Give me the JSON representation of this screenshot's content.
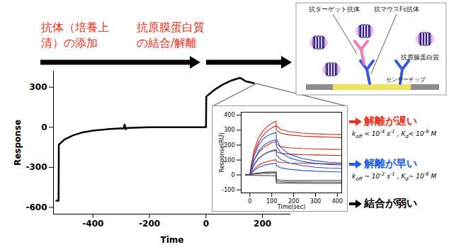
{
  "chart_data": [
    {
      "type": "line",
      "x_label": "Time",
      "y_label": "Response",
      "xlim": [
        -540,
        300
      ],
      "xticks": [
        -400,
        -200,
        0,
        200
      ],
      "ylim": [
        -650,
        420
      ],
      "yticks": [
        -600,
        -300,
        0,
        300
      ],
      "x": [
        -530,
        -522,
        -521,
        -500,
        -470,
        -440,
        -400,
        -350,
        -300,
        -292,
        -288,
        -284,
        -280,
        -200,
        -100,
        -10,
        0,
        1,
        30,
        60,
        90,
        120,
        125,
        140,
        170
      ],
      "series": [
        {
          "color": "#000000",
          "values": [
            -550,
            -550,
            -130,
            -90,
            -60,
            -40,
            -25,
            -15,
            -8,
            -10,
            20,
            -15,
            -5,
            0,
            0,
            0,
            0,
            230,
            280,
            320,
            350,
            370,
            365,
            345,
            330
          ]
        }
      ]
    },
    {
      "type": "line",
      "x_label": "Time(sec)",
      "y_label": "Response(RU)",
      "xlim": [
        -40,
        420
      ],
      "xticks": [
        0,
        100,
        200,
        300,
        400
      ],
      "ylim": [
        -120,
        420
      ],
      "yticks": [
        -100,
        0,
        100,
        200,
        300,
        400
      ],
      "x": [
        -20,
        0,
        5,
        20,
        40,
        60,
        80,
        100,
        120,
        121,
        140,
        180,
        240,
        300,
        360,
        420
      ],
      "series": [
        {
          "color": "#d7301f",
          "values": [
            0,
            0,
            60,
            170,
            250,
            295,
            325,
            345,
            360,
            330,
            305,
            290,
            280,
            275,
            272,
            270
          ]
        },
        {
          "color": "#c0281c",
          "values": [
            0,
            0,
            50,
            150,
            220,
            265,
            295,
            315,
            330,
            300,
            280,
            268,
            260,
            256,
            253,
            250
          ]
        },
        {
          "color": "#d7301f",
          "values": [
            0,
            0,
            30,
            100,
            150,
            180,
            200,
            215,
            225,
            205,
            190,
            182,
            177,
            174,
            172,
            170
          ]
        },
        {
          "color": "#b02418",
          "values": [
            0,
            0,
            20,
            70,
            110,
            135,
            150,
            162,
            170,
            155,
            145,
            140,
            136,
            134,
            132,
            130
          ]
        },
        {
          "color": "#d7301f",
          "values": [
            0,
            0,
            10,
            40,
            65,
            80,
            90,
            97,
            102,
            90,
            84,
            80,
            78,
            76,
            75,
            74
          ]
        },
        {
          "color": "#2a55d0",
          "values": [
            0,
            0,
            40,
            130,
            200,
            240,
            262,
            275,
            285,
            240,
            185,
            140,
            110,
            95,
            85,
            80
          ]
        },
        {
          "color": "#2a55d0",
          "values": [
            0,
            0,
            30,
            100,
            160,
            195,
            215,
            228,
            235,
            195,
            150,
            115,
            90,
            77,
            70,
            66
          ]
        },
        {
          "color": "#2a55d0",
          "values": [
            0,
            0,
            20,
            70,
            110,
            135,
            150,
            160,
            165,
            135,
            105,
            80,
            62,
            52,
            46,
            43
          ]
        },
        {
          "color": "#2a55d0",
          "values": [
            0,
            0,
            10,
            30,
            50,
            62,
            70,
            75,
            78,
            62,
            48,
            38,
            30,
            25,
            22,
            20
          ]
        },
        {
          "color": "#333333",
          "values": [
            0,
            0,
            5,
            10,
            14,
            17,
            19,
            20,
            21,
            -30,
            -35,
            -37,
            -37,
            -37,
            -37,
            -37
          ]
        },
        {
          "color": "#555555",
          "values": [
            0,
            0,
            3,
            6,
            8,
            10,
            11,
            12,
            13,
            -40,
            -45,
            -47,
            -47,
            -48,
            -48,
            -48
          ]
        },
        {
          "color": "#333333",
          "values": [
            0,
            0,
            -2,
            -3,
            -3,
            -4,
            -4,
            -5,
            -5,
            -55,
            -55,
            -55,
            -56,
            -56,
            -56,
            -56
          ]
        }
      ]
    }
  ],
  "annotations": {
    "steps": [
      {
        "lines": [
          "抗体（培養上",
          "清）の添加"
        ],
        "color": "#e8321e"
      },
      {
        "lines": [
          "抗原膜蛋白質",
          "の結合/解離"
        ],
        "color": "#e8321e"
      }
    ],
    "classes": [
      {
        "label": "解離が遅い",
        "color": "#e8321e",
        "detail": [
          {
            "t": "k"
          },
          {
            "sub": "off"
          },
          {
            "t": " < 10"
          },
          {
            "sup": "-4"
          },
          {
            "t": " s"
          },
          {
            "sup": "-1"
          },
          {
            "t": " , K"
          },
          {
            "sub": "d"
          },
          {
            "t": "< 10"
          },
          {
            "sup": "-8"
          },
          {
            "t": " M"
          }
        ]
      },
      {
        "label": "解離が早い",
        "color": "#1f5fe0",
        "detail": [
          {
            "t": "k"
          },
          {
            "sub": "off"
          },
          {
            "t": " ~ 10"
          },
          {
            "sup": "-2"
          },
          {
            "t": " s"
          },
          {
            "sup": "-1"
          },
          {
            "t": " , K"
          },
          {
            "sub": "d"
          },
          {
            "t": "~ 10"
          },
          {
            "sup": "-6"
          },
          {
            "t": " M"
          }
        ]
      },
      {
        "label": "結合が弱い",
        "color": "#000000",
        "detail": []
      }
    ]
  },
  "diagram": {
    "labels": {
      "target_antibody": "抗ターゲット抗体",
      "fc_antibody": "抗マウスFc抗体",
      "antigen": "抗原膜蛋白質",
      "chip": "センサーチップ"
    }
  }
}
